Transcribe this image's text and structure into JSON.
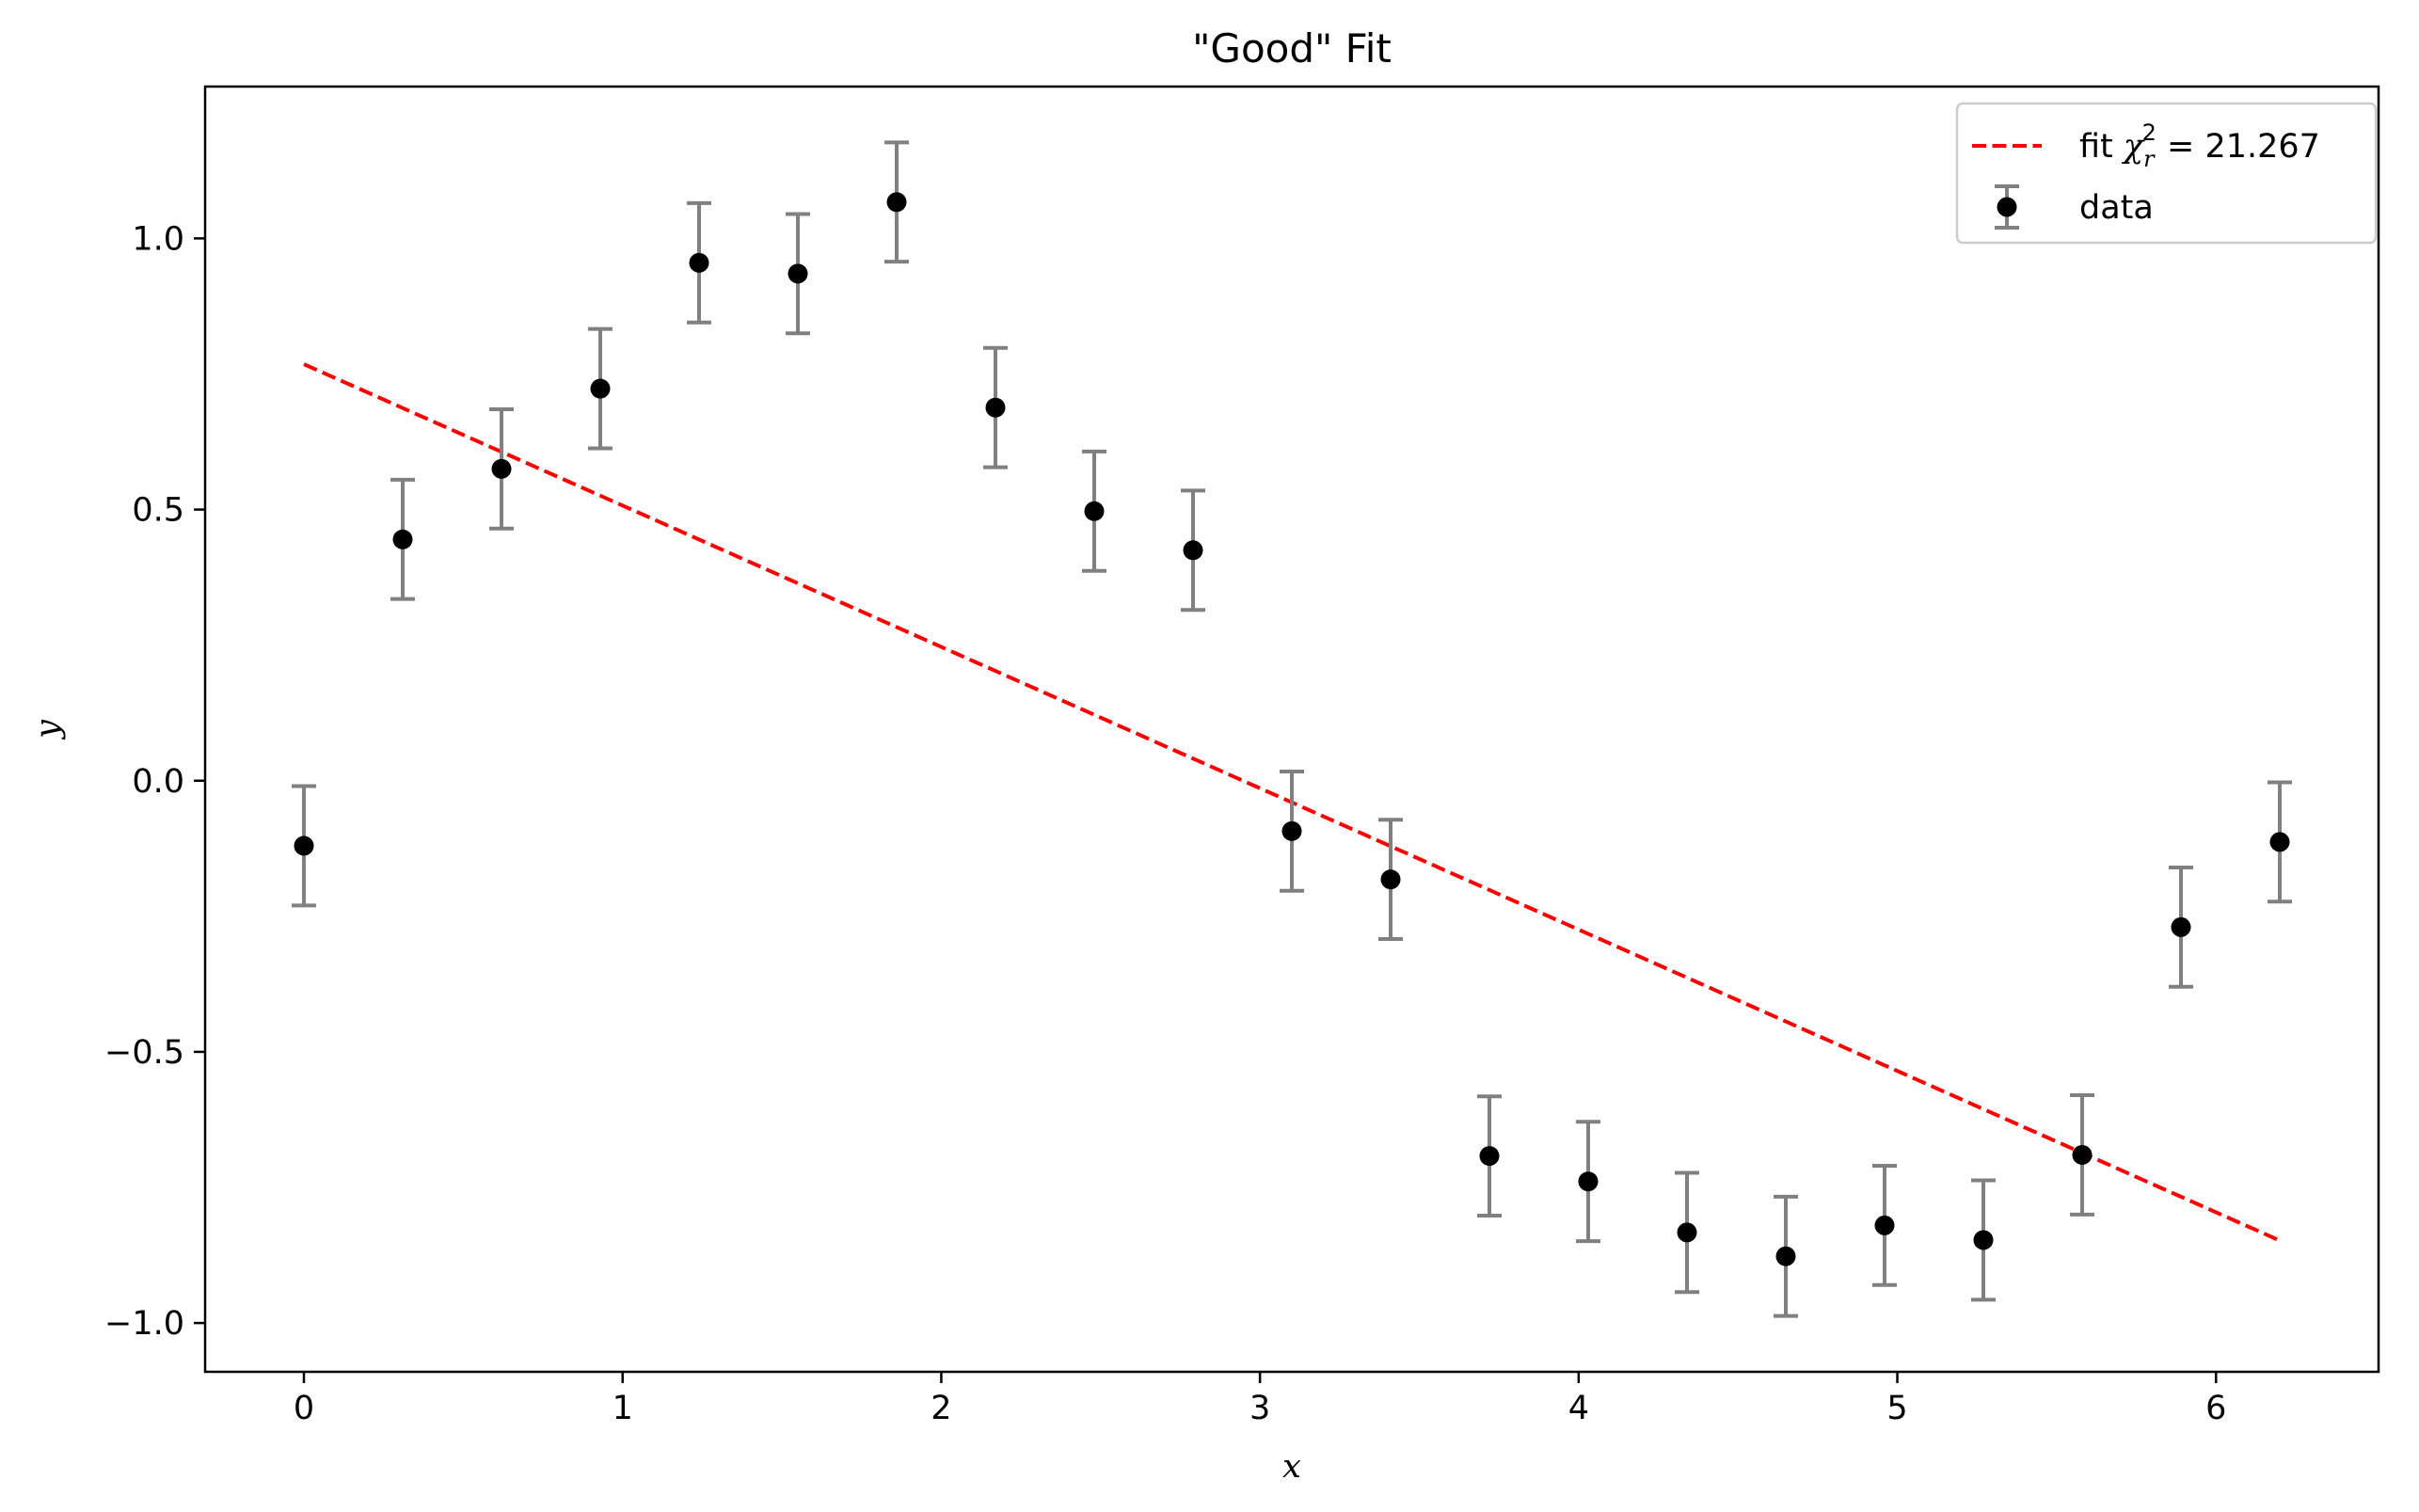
{
  "chart_data": {
    "type": "scatter",
    "title": "\"Good\" Fit",
    "xlabel": "x",
    "ylabel": "y",
    "xlim": [
      -0.31,
      6.51
    ],
    "ylim": [
      -1.09,
      1.28
    ],
    "xticks": [
      0,
      1,
      2,
      3,
      4,
      5,
      6
    ],
    "yticks": [
      -1.0,
      -0.5,
      0.0,
      0.5,
      1.0
    ],
    "xtick_labels": [
      "0",
      "1",
      "2",
      "3",
      "4",
      "5",
      "6"
    ],
    "ytick_labels": [
      "−1.0",
      "−0.5",
      "0.0",
      "0.5",
      "1.0"
    ],
    "grid": false,
    "legend_position": "top-right",
    "series": [
      {
        "name": "data",
        "kind": "errorbar",
        "color": "#000000",
        "errorbar_color": "#808080",
        "x": [
          0.0,
          0.31,
          0.62,
          0.93,
          1.24,
          1.55,
          1.86,
          2.17,
          2.48,
          2.79,
          3.1,
          3.41,
          3.72,
          4.03,
          4.34,
          4.65,
          4.96,
          5.27,
          5.58,
          5.89,
          6.2
        ],
        "y": [
          -0.12,
          0.445,
          0.575,
          0.723,
          0.955,
          0.935,
          1.067,
          0.688,
          0.497,
          0.425,
          -0.093,
          -0.182,
          -0.692,
          -0.739,
          -0.833,
          -0.877,
          -0.82,
          -0.847,
          -0.69,
          -0.27,
          -0.113
        ],
        "yerr": 0.11
      },
      {
        "name": "fit",
        "kind": "line",
        "color": "#ff0000",
        "linestyle": "dashed",
        "label_prefix": "fit ",
        "label_math": "χ",
        "label_sub": "r",
        "label_sup": "2",
        "label_suffix": " = 21.267",
        "x": [
          0.0,
          6.2
        ],
        "y": [
          0.768,
          -0.848
        ]
      }
    ]
  }
}
